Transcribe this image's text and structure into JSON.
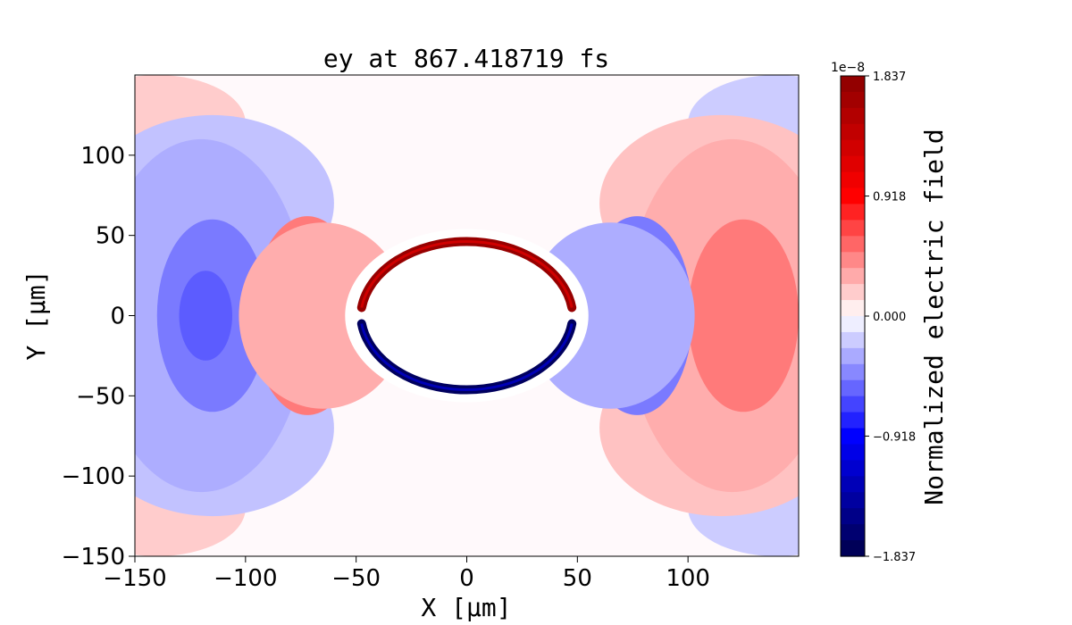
{
  "chart_data": {
    "type": "heatmap",
    "title": "ey at 867.418719 fs",
    "xlabel": "X [μm]",
    "ylabel": "Y [μm]",
    "xlim": [
      -150,
      150
    ],
    "ylim": [
      -150,
      150
    ],
    "x_ticks": [
      -150,
      -100,
      -50,
      0,
      50,
      100
    ],
    "x_tick_labels": [
      "−150",
      "−100",
      "−50",
      "0",
      "50",
      "100"
    ],
    "y_ticks": [
      -150,
      -100,
      -50,
      0,
      50,
      100
    ],
    "y_tick_labels": [
      "−150",
      "−100",
      "−50",
      "0",
      "50",
      "100"
    ],
    "colorbar": {
      "label": "Normalized electric field",
      "scale_text": "1e−8",
      "vmin": -1.837,
      "vmax": 1.837,
      "ticks": [
        1.837,
        0.918,
        0.0,
        -0.918,
        -1.837
      ],
      "tick_labels": [
        "1.837",
        "0.918",
        "0.000",
        "−0.918",
        "−1.837"
      ],
      "levels": 30,
      "colormap": "seismic"
    },
    "field_features": {
      "ring_radius_um": 48,
      "upper_arc_sign": "positive",
      "lower_arc_sign": "negative",
      "outer_lobes": "alternating red/blue crescents mirrored about x=0"
    },
    "grid": false
  },
  "colors": {
    "strong_red": "#8b0000",
    "red": "#ff0000",
    "white": "#ffffff",
    "blue": "#0000ff",
    "strong_blue": "#00004c"
  }
}
